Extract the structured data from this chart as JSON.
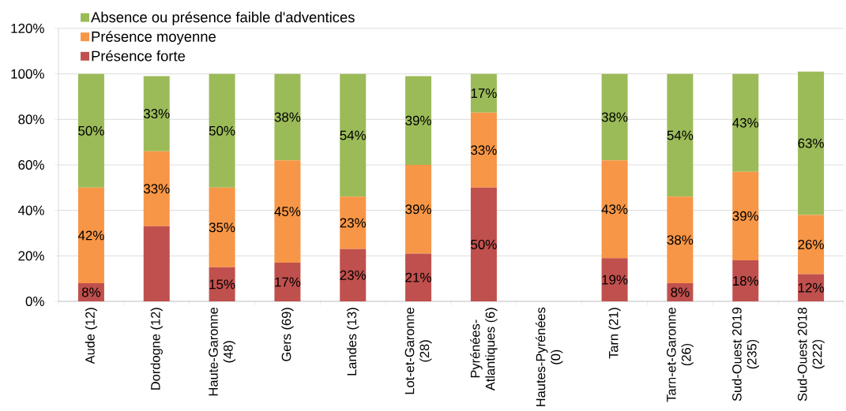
{
  "chart_data": {
    "type": "bar",
    "stacked": true,
    "categories": [
      "Aude (12)",
      "Dordogne (12)",
      "Haute-Garonne (48)",
      "Gers (69)",
      "Landes (13)",
      "Lot-et-Garonne (28)",
      "Pyrénées-Atlantiques (6)",
      "Hautes-Pyrénées (0)",
      "Tarn (21)",
      "Tarn-et-Garonne (26)",
      "Sud-Ouest 2019 (235)",
      "Sud-Ouest 2018 (222)"
    ],
    "series": [
      {
        "name": "Présence forte",
        "color": "#c0504d",
        "values": [
          8,
          33,
          15,
          17,
          23,
          21,
          50,
          null,
          19,
          8,
          18,
          12
        ],
        "value_labels": [
          "8%",
          null,
          "15%",
          "17%",
          "23%",
          "21%",
          "50%",
          null,
          "19%",
          "8%",
          "18%",
          "12%"
        ]
      },
      {
        "name": "Présence moyenne",
        "color": "#f79646",
        "values": [
          42,
          33,
          35,
          45,
          23,
          39,
          33,
          null,
          43,
          38,
          39,
          26
        ],
        "value_labels": [
          "42%",
          "33%",
          "35%",
          "45%",
          "23%",
          "39%",
          "33%",
          null,
          "43%",
          "38%",
          "39%",
          "26%"
        ]
      },
      {
        "name": "Absence ou présence faible d'adventices",
        "color": "#9bbb59",
        "values": [
          50,
          33,
          50,
          38,
          54,
          39,
          17,
          null,
          38,
          54,
          43,
          63
        ],
        "value_labels": [
          "50%",
          "33%",
          "50%",
          "38%",
          "54%",
          "39%",
          "17%",
          null,
          "38%",
          "54%",
          "43%",
          "63%"
        ]
      }
    ],
    "ylim": [
      0,
      120
    ],
    "yticks": [
      {
        "value": 0,
        "label": "0%"
      },
      {
        "value": 20,
        "label": "20%"
      },
      {
        "value": 40,
        "label": "40%"
      },
      {
        "value": 60,
        "label": "60%"
      },
      {
        "value": 80,
        "label": "80%"
      },
      {
        "value": 100,
        "label": "100%"
      },
      {
        "value": 120,
        "label": "120%"
      }
    ],
    "grid": "y",
    "legend": "top left"
  }
}
